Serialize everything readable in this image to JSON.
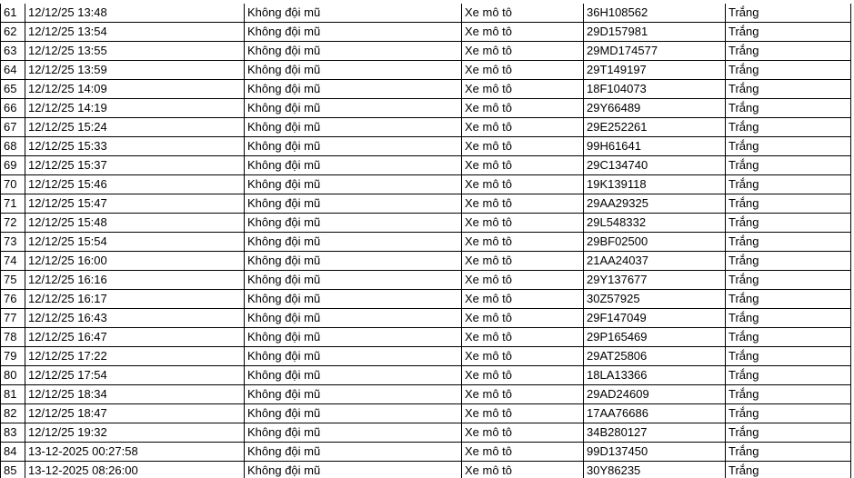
{
  "table": {
    "rows": [
      [
        "61",
        "12/12/25 13:48",
        "Không đội mũ",
        "Xe mô tô",
        "36H108562",
        "Trắng"
      ],
      [
        "62",
        "12/12/25 13:54",
        "Không đội mũ",
        "Xe mô tô",
        "29D157981",
        "Trắng"
      ],
      [
        "63",
        "12/12/25 13:55",
        "Không đội mũ",
        "Xe mô tô",
        "29MD174577",
        "Trắng"
      ],
      [
        "64",
        "12/12/25 13:59",
        "Không đội mũ",
        "Xe mô tô",
        "29T149197",
        "Trắng"
      ],
      [
        "65",
        "12/12/25 14:09",
        "Không đội mũ",
        "Xe mô tô",
        "18F104073",
        "Trắng"
      ],
      [
        "66",
        "12/12/25 14:19",
        "Không đội mũ",
        "Xe mô tô",
        "29Y66489",
        "Trắng"
      ],
      [
        "67",
        "12/12/25 15:24",
        "Không đội mũ",
        "Xe mô tô",
        "29E252261",
        "Trắng"
      ],
      [
        "68",
        "12/12/25 15:33",
        "Không đội mũ",
        "Xe mô tô",
        "99H61641",
        "Trắng"
      ],
      [
        "69",
        "12/12/25 15:37",
        "Không đội mũ",
        "Xe mô tô",
        "29C134740",
        "Trắng"
      ],
      [
        "70",
        "12/12/25 15:46",
        "Không đội mũ",
        "Xe mô tô",
        "19K139118",
        "Trắng"
      ],
      [
        "71",
        "12/12/25 15:47",
        "Không đội mũ",
        "Xe mô tô",
        "29AA29325",
        "Trắng"
      ],
      [
        "72",
        "12/12/25 15:48",
        "Không đội mũ",
        "Xe mô tô",
        "29L548332",
        "Trắng"
      ],
      [
        "73",
        "12/12/25 15:54",
        "Không đội mũ",
        "Xe mô tô",
        "29BF02500",
        "Trắng"
      ],
      [
        "74",
        "12/12/25 16:00",
        "Không đội mũ",
        "Xe mô tô",
        "21AA24037",
        "Trắng"
      ],
      [
        "75",
        "12/12/25 16:16",
        "Không đội mũ",
        "Xe mô tô",
        "29Y137677",
        "Trắng"
      ],
      [
        "76",
        "12/12/25 16:17",
        "Không đội mũ",
        "Xe mô tô",
        "30Z57925",
        "Trắng"
      ],
      [
        "77",
        "12/12/25 16:43",
        "Không đội mũ",
        "Xe mô tô",
        "29F147049",
        "Trắng"
      ],
      [
        "78",
        "12/12/25 16:47",
        "Không đội mũ",
        "Xe mô tô",
        "29P165469",
        "Trắng"
      ],
      [
        "79",
        "12/12/25 17:22",
        "Không đội mũ",
        "Xe mô tô",
        "29AT25806",
        "Trắng"
      ],
      [
        "80",
        "12/12/25 17:54",
        "Không đội mũ",
        "Xe mô tô",
        "18LA13366",
        "Trắng"
      ],
      [
        "81",
        "12/12/25 18:34",
        "Không đội mũ",
        "Xe mô tô",
        "29AD24609",
        "Trắng"
      ],
      [
        "82",
        "12/12/25 18:47",
        "Không đội mũ",
        "Xe mô tô",
        "17AA76686",
        "Trắng"
      ],
      [
        "83",
        "12/12/25 19:32",
        "Không đội mũ",
        "Xe mô tô",
        "34B280127",
        "Trắng"
      ],
      [
        "84",
        "13-12-2025 00:27:58",
        "Không đội mũ",
        "Xe mô tô",
        "99D137450",
        "Trắng"
      ],
      [
        "85",
        "13-12-2025 08:26:00",
        "Không đội mũ",
        "Xe mô tô",
        "30Y86235",
        "Trắng"
      ]
    ]
  }
}
